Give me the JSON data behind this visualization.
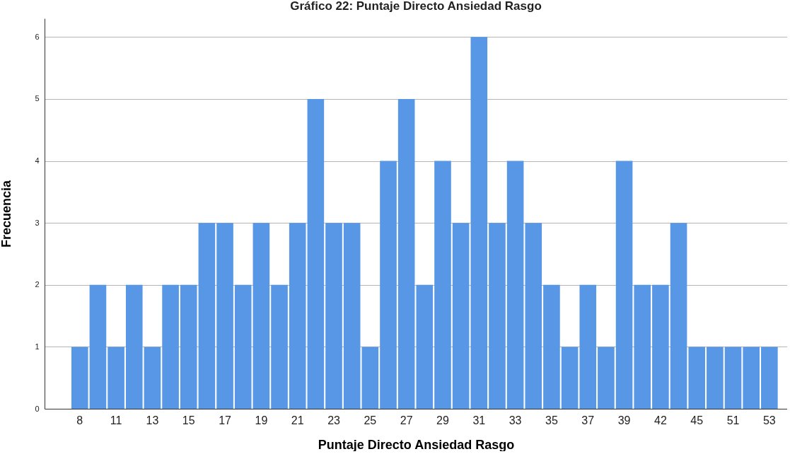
{
  "chart_data": {
    "type": "bar",
    "title": "Gráfico 22: Puntaje Directo Ansiedad Rasgo",
    "xlabel": "Puntaje Directo Ansiedad Rasgo",
    "ylabel": "Frecuencia",
    "categories": [
      "8",
      null,
      "11",
      null,
      "13",
      null,
      "15",
      null,
      "17",
      null,
      "19",
      null,
      "21",
      null,
      "23",
      null,
      "25",
      null,
      "27",
      null,
      "29",
      null,
      "31",
      null,
      "33",
      null,
      "35",
      null,
      "37",
      null,
      "39",
      null,
      "42",
      null,
      "45",
      null,
      "51",
      null,
      "53"
    ],
    "values": [
      1,
      2,
      1,
      2,
      1,
      2,
      2,
      3,
      3,
      2,
      3,
      2,
      3,
      5,
      3,
      3,
      1,
      4,
      5,
      2,
      4,
      3,
      6,
      3,
      4,
      3,
      2,
      1,
      2,
      1,
      4,
      2,
      2,
      3,
      1,
      1,
      1,
      1,
      1
    ],
    "color": "#5797e6",
    "ylim": [
      0,
      6.3
    ],
    "yticks": [
      0,
      1,
      2,
      3,
      4,
      5,
      6
    ],
    "grid": "y"
  }
}
